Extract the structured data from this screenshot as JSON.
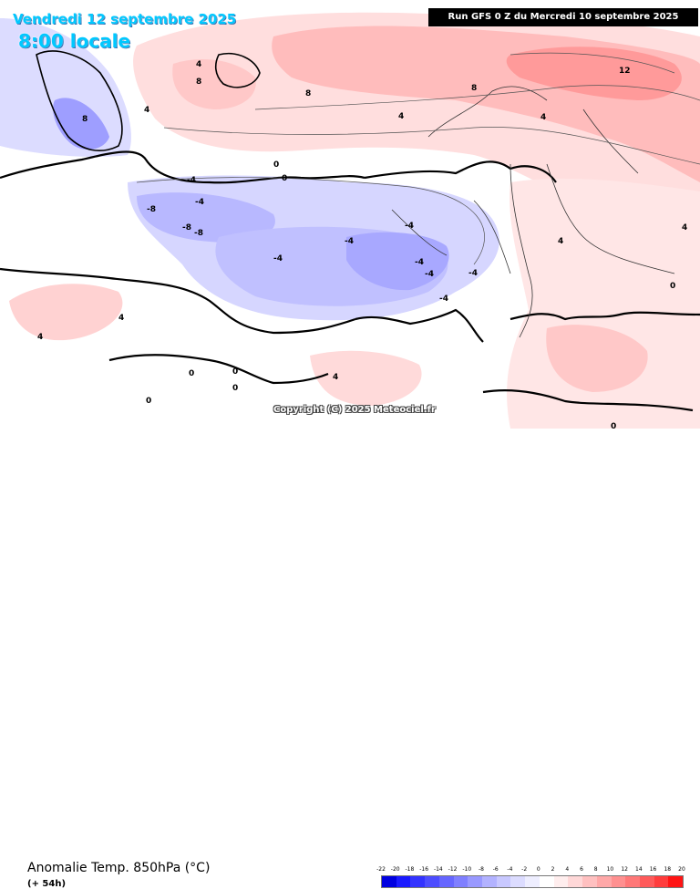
{
  "header": {
    "date_line": "Vendredi 12 septembre 2025",
    "time_line": "8:00 locale",
    "run_info": "Run GFS 0 Z du Mercredi 10 septembre 2025"
  },
  "copyright": "Copyright (C) 2025 Meteociel.fr",
  "footer": {
    "parameter": "Anomalie Temp. 850hPa (°C)",
    "lead_time": "(+ 54h)"
  },
  "legend": {
    "scale_labels": [
      "-22",
      "-20",
      "-18",
      "-16",
      "-14",
      "-12",
      "-10",
      "-8",
      "-6",
      "-4",
      "-2",
      "0",
      "2",
      "4",
      "6",
      "8",
      "10",
      "12",
      "14",
      "16",
      "18",
      "20"
    ],
    "colors": [
      "#0000e0",
      "#1a1aff",
      "#3333ff",
      "#4d4dff",
      "#6666ff",
      "#7f7fff",
      "#9999ff",
      "#b2b2ff",
      "#c8c8ff",
      "#dcdcff",
      "#eeeeff",
      "#ffffff",
      "#ffeeee",
      "#ffd8d8",
      "#ffc0c0",
      "#ffa8a8",
      "#ff9090",
      "#ff7878",
      "#ff5a5a",
      "#ff3c3c",
      "#ff1414"
    ]
  },
  "map_labels": {
    "contour_values": [
      "4",
      "8",
      "12",
      "0",
      "-4",
      "-8",
      "4",
      "8",
      "4",
      "-4",
      "0",
      "0",
      "-4",
      "-8",
      "-8",
      "-4",
      "-4",
      "-4",
      "-4",
      "-4",
      "-4",
      "4",
      "4",
      "4",
      "0",
      "0",
      "0",
      "0",
      "0",
      "4",
      "4",
      "4",
      "8",
      "8"
    ]
  }
}
